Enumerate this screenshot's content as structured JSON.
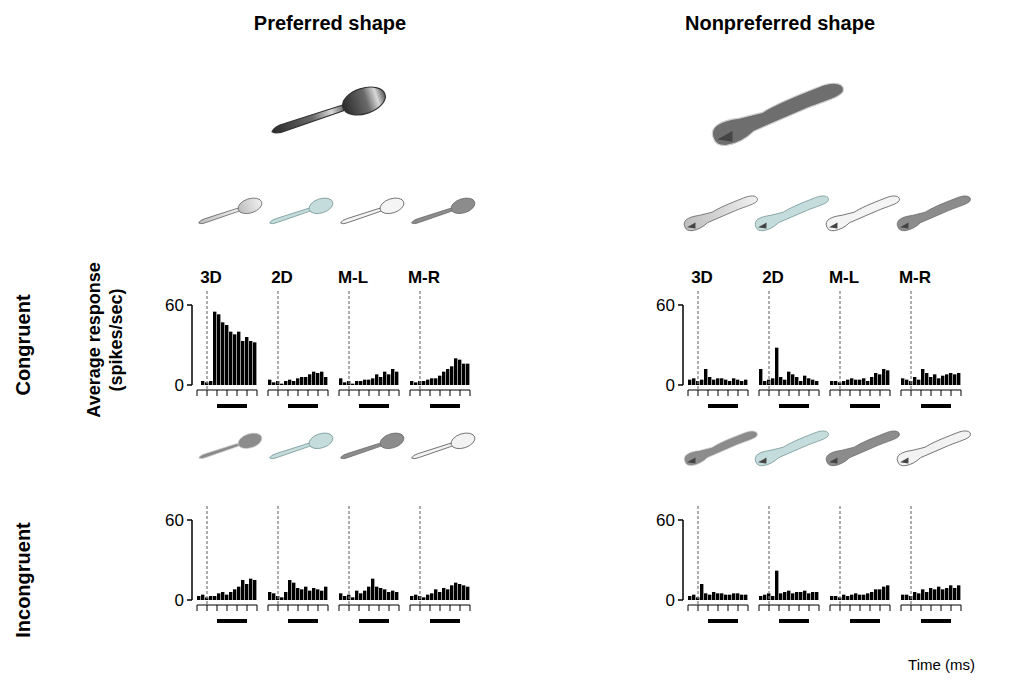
{
  "figure": {
    "column_titles": [
      "Preferred shape",
      "Nonpreferred shape"
    ],
    "row_titles": [
      "Congruent",
      "Incongruent"
    ],
    "y_label": "Average response (spikes/sec)",
    "x_label": "Time (ms)"
  },
  "chart_data": [
    {
      "type": "histogram",
      "title": "3D",
      "bins": [
        -100,
        -60,
        -20,
        20,
        60,
        100,
        140,
        180,
        220,
        260,
        300,
        340,
        380,
        420,
        460,
        500
      ],
      "values": [
        0,
        3,
        2,
        3,
        55,
        53,
        47,
        45,
        40,
        38,
        40,
        33,
        36,
        33,
        32
      ],
      "xlim": [
        -100,
        500
      ],
      "xticks": [
        -100,
        0,
        100,
        200,
        300,
        400,
        500
      ],
      "ylim": [
        0,
        60
      ],
      "yticks": [
        0,
        60
      ],
      "tick_labels": "y",
      "color": "#000000",
      "onset": 0,
      "window": [
        100,
        400
      ]
    },
    {
      "type": "histogram",
      "title": "2D",
      "bins": [
        -100,
        -60,
        -20,
        20,
        60,
        100,
        140,
        180,
        220,
        260,
        300,
        340,
        380,
        420,
        460,
        500
      ],
      "values": [
        4,
        2,
        3,
        1,
        3,
        4,
        3,
        5,
        6,
        6,
        8,
        10,
        9,
        10,
        6
      ],
      "xlim": [
        -100,
        500
      ],
      "xticks": [
        -100,
        0,
        100,
        200,
        300,
        400,
        500
      ],
      "ylim": [
        0,
        60
      ],
      "tick_labels": false,
      "color": "#000000",
      "onset": 0,
      "window": [
        100,
        400
      ]
    },
    {
      "type": "histogram",
      "title": "M-L",
      "bins": [
        -100,
        -60,
        -20,
        20,
        60,
        100,
        140,
        180,
        220,
        260,
        300,
        340,
        380,
        420,
        460,
        500
      ],
      "values": [
        5,
        2,
        3,
        1,
        3,
        3,
        4,
        4,
        5,
        8,
        6,
        10,
        8,
        12,
        10
      ],
      "xlim": [
        -100,
        500
      ],
      "xticks": [
        -100,
        0,
        100,
        200,
        300,
        400,
        500
      ],
      "ylim": [
        0,
        60
      ],
      "tick_labels": false,
      "color": "#000000",
      "onset": 0,
      "window": [
        100,
        400
      ]
    },
    {
      "type": "histogram",
      "title": "M-R",
      "bins": [
        -100,
        -60,
        -20,
        20,
        60,
        100,
        140,
        180,
        220,
        260,
        300,
        340,
        380,
        420,
        460,
        500
      ],
      "values": [
        3,
        2,
        3,
        3,
        4,
        5,
        5,
        7,
        10,
        12,
        14,
        20,
        19,
        16,
        16
      ],
      "xlim": [
        -100,
        500
      ],
      "xticks": [
        -100,
        0,
        100,
        200,
        300,
        400,
        500
      ],
      "ylim": [
        0,
        60
      ],
      "tick_labels": false,
      "color": "#000000",
      "onset": 0,
      "window": [
        100,
        400
      ]
    },
    {
      "type": "histogram",
      "bins": [
        -100,
        -60,
        -20,
        20,
        60,
        100,
        140,
        180,
        220,
        260,
        300,
        340,
        380,
        420,
        460,
        500
      ],
      "values": [
        3,
        4,
        2,
        3,
        3,
        5,
        6,
        4,
        6,
        8,
        10,
        15,
        12,
        16,
        15
      ],
      "xlim": [
        -100,
        500
      ],
      "xticks": [
        -100,
        0,
        100,
        200,
        300,
        400,
        500
      ],
      "ylim": [
        0,
        60
      ],
      "yticks": [
        0,
        60
      ],
      "tick_labels": "y",
      "color": "#000000",
      "onset": 0,
      "window": [
        100,
        400
      ]
    },
    {
      "type": "histogram",
      "bins": [
        -100,
        -60,
        -20,
        20,
        60,
        100,
        140,
        180,
        220,
        260,
        300,
        340,
        380,
        420,
        460,
        500
      ],
      "values": [
        6,
        5,
        3,
        2,
        6,
        15,
        13,
        9,
        8,
        10,
        7,
        9,
        8,
        7,
        10
      ],
      "xlim": [
        -100,
        500
      ],
      "xticks": [
        -100,
        0,
        100,
        200,
        300,
        400,
        500
      ],
      "ylim": [
        0,
        60
      ],
      "tick_labels": false,
      "color": "#000000",
      "onset": 0,
      "window": [
        100,
        400
      ]
    },
    {
      "type": "histogram",
      "bins": [
        -100,
        -60,
        -20,
        20,
        60,
        100,
        140,
        180,
        220,
        260,
        300,
        340,
        380,
        420,
        460,
        500
      ],
      "values": [
        5,
        3,
        4,
        2,
        7,
        5,
        7,
        10,
        16,
        10,
        9,
        8,
        6,
        7,
        6
      ],
      "xlim": [
        -100,
        500
      ],
      "xticks": [
        -100,
        0,
        100,
        200,
        300,
        400,
        500
      ],
      "ylim": [
        0,
        60
      ],
      "tick_labels": false,
      "color": "#000000",
      "onset": 0,
      "window": [
        100,
        400
      ]
    },
    {
      "type": "histogram",
      "bins": [
        -100,
        -60,
        -20,
        20,
        60,
        100,
        140,
        180,
        220,
        260,
        300,
        340,
        380,
        420,
        460,
        500
      ],
      "values": [
        3,
        4,
        3,
        2,
        4,
        5,
        8,
        6,
        9,
        8,
        11,
        13,
        12,
        11,
        10
      ],
      "xlim": [
        -100,
        500
      ],
      "xticks": [
        -100,
        0,
        100,
        200,
        300,
        400,
        500
      ],
      "ylim": [
        0,
        60
      ],
      "tick_labels": false,
      "color": "#000000",
      "onset": 0,
      "window": [
        100,
        400
      ]
    },
    {
      "type": "histogram",
      "title": "3D",
      "bins": [
        -100,
        -60,
        -20,
        20,
        60,
        100,
        140,
        180,
        220,
        260,
        300,
        340,
        380,
        420,
        460,
        500
      ],
      "values": [
        4,
        5,
        3,
        4,
        12,
        6,
        4,
        5,
        5,
        4,
        3,
        5,
        4,
        3,
        4
      ],
      "xlim": [
        -100,
        500
      ],
      "xticks": [
        -100,
        0,
        100,
        200,
        300,
        400,
        500
      ],
      "ylim": [
        0,
        60
      ],
      "yticks": [
        0,
        60
      ],
      "tick_labels": "y",
      "color": "#000000",
      "onset": 0,
      "window": [
        100,
        400
      ]
    },
    {
      "type": "histogram",
      "title": "2D",
      "bins": [
        -100,
        -60,
        -20,
        20,
        60,
        100,
        140,
        180,
        220,
        260,
        300,
        340,
        380,
        420,
        460,
        500
      ],
      "values": [
        12,
        3,
        4,
        5,
        28,
        6,
        4,
        10,
        8,
        6,
        3,
        7,
        5,
        4,
        3
      ],
      "xlim": [
        -100,
        500
      ],
      "xticks": [
        -100,
        0,
        100,
        200,
        300,
        400,
        500
      ],
      "ylim": [
        0,
        60
      ],
      "tick_labels": false,
      "color": "#000000",
      "onset": 0,
      "window": [
        100,
        400
      ]
    },
    {
      "type": "histogram",
      "title": "M-L",
      "bins": [
        -100,
        -60,
        -20,
        20,
        60,
        100,
        140,
        180,
        220,
        260,
        300,
        340,
        380,
        420,
        460,
        500
      ],
      "values": [
        3,
        3,
        2,
        3,
        4,
        5,
        4,
        4,
        5,
        3,
        6,
        9,
        8,
        12,
        11
      ],
      "xlim": [
        -100,
        500
      ],
      "xticks": [
        -100,
        0,
        100,
        200,
        300,
        400,
        500
      ],
      "ylim": [
        0,
        60
      ],
      "tick_labels": false,
      "color": "#000000",
      "onset": 0,
      "window": [
        100,
        400
      ]
    },
    {
      "type": "histogram",
      "title": "M-R",
      "bins": [
        -100,
        -60,
        -20,
        20,
        60,
        100,
        140,
        180,
        220,
        260,
        300,
        340,
        380,
        420,
        460,
        500
      ],
      "values": [
        5,
        4,
        3,
        6,
        4,
        12,
        9,
        6,
        8,
        5,
        7,
        8,
        9,
        8,
        9
      ],
      "xlim": [
        -100,
        500
      ],
      "xticks": [
        -100,
        0,
        100,
        200,
        300,
        400,
        500
      ],
      "ylim": [
        0,
        60
      ],
      "tick_labels": false,
      "color": "#000000",
      "onset": 0,
      "window": [
        100,
        400
      ]
    },
    {
      "type": "histogram",
      "bins": [
        -100,
        -60,
        -20,
        20,
        60,
        100,
        140,
        180,
        220,
        260,
        300,
        340,
        380,
        420,
        460,
        500
      ],
      "values": [
        3,
        4,
        2,
        12,
        5,
        4,
        6,
        5,
        5,
        4,
        4,
        5,
        5,
        4,
        4
      ],
      "xlim": [
        -100,
        500
      ],
      "xticks": [
        -100,
        0,
        100,
        200,
        300,
        400,
        500
      ],
      "ylim": [
        0,
        60
      ],
      "yticks": [
        0,
        60
      ],
      "tick_labels": "y",
      "color": "#000000",
      "onset": 0,
      "window": [
        100,
        400
      ]
    },
    {
      "type": "histogram",
      "bins": [
        -100,
        -60,
        -20,
        20,
        60,
        100,
        140,
        180,
        220,
        260,
        300,
        340,
        380,
        420,
        460,
        500
      ],
      "values": [
        3,
        4,
        5,
        3,
        22,
        5,
        6,
        7,
        5,
        6,
        6,
        7,
        5,
        6,
        6
      ],
      "xlim": [
        -100,
        500
      ],
      "xticks": [
        -100,
        0,
        100,
        200,
        300,
        400,
        500
      ],
      "ylim": [
        0,
        60
      ],
      "tick_labels": false,
      "color": "#000000",
      "onset": 0,
      "window": [
        100,
        400
      ]
    },
    {
      "type": "histogram",
      "bins": [
        -100,
        -60,
        -20,
        20,
        60,
        100,
        140,
        180,
        220,
        260,
        300,
        340,
        380,
        420,
        460,
        500
      ],
      "values": [
        3,
        3,
        2,
        4,
        3,
        4,
        5,
        4,
        4,
        5,
        6,
        8,
        8,
        10,
        11
      ],
      "xlim": [
        -100,
        500
      ],
      "xticks": [
        -100,
        0,
        100,
        200,
        300,
        400,
        500
      ],
      "ylim": [
        0,
        60
      ],
      "tick_labels": false,
      "color": "#000000",
      "onset": 0,
      "window": [
        100,
        400
      ]
    },
    {
      "type": "histogram",
      "bins": [
        -100,
        -60,
        -20,
        20,
        60,
        100,
        140,
        180,
        220,
        260,
        300,
        340,
        380,
        420,
        460,
        500
      ],
      "values": [
        4,
        4,
        3,
        6,
        5,
        8,
        6,
        9,
        8,
        10,
        8,
        9,
        11,
        9,
        11
      ],
      "xlim": [
        -100,
        500
      ],
      "xticks": [
        -100,
        0,
        100,
        200,
        300,
        400,
        500
      ],
      "ylim": [
        0,
        60
      ],
      "tick_labels": false,
      "color": "#000000",
      "onset": 0,
      "window": [
        100,
        400
      ]
    }
  ]
}
